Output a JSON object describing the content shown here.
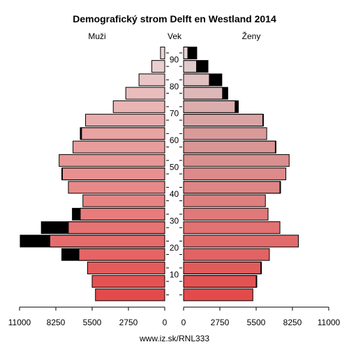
{
  "chart_data": {
    "type": "bar",
    "title": "Demografický strom Delft en Westland 2014",
    "left_header": "Muži",
    "center_header": "Vek",
    "right_header": "Ženy",
    "source": "www.iz.sk/RNL333",
    "xlim": [
      0,
      11000
    ],
    "x_ticks_left": [
      "11000",
      "8250",
      "5500",
      "2750",
      "0"
    ],
    "x_ticks_right": [
      "0",
      "2750",
      "5500",
      "8250",
      "11000"
    ],
    "age_ticks": [
      "10",
      "20",
      "30",
      "40",
      "50",
      "60",
      "70",
      "80",
      "90"
    ],
    "age_groups": [
      "0-4",
      "5-9",
      "10-14",
      "15-19",
      "20-24",
      "25-29",
      "30-34",
      "35-39",
      "40-44",
      "45-49",
      "50-54",
      "55-59",
      "60-64",
      "65-69",
      "70-74",
      "75-79",
      "80-84",
      "85-89",
      "90-94"
    ],
    "colors": {
      "surplus": "#000000",
      "male_gradient": [
        "#e34b4b",
        "#e87c7c",
        "#e8a3a3",
        "#ebd6d6"
      ],
      "female_gradient": [
        "#e34b4b",
        "#e07a7a",
        "#d99a9a",
        "#e3d3d3"
      ]
    },
    "series": [
      {
        "name": "Muži",
        "values": [
          5250,
          5500,
          5850,
          7800,
          10950,
          9350,
          7000,
          6200,
          7300,
          7800,
          8000,
          6950,
          6400,
          6000,
          3900,
          2950,
          1950,
          980,
          320
        ]
      },
      {
        "name": "Ženy",
        "values": [
          5250,
          5550,
          5900,
          6500,
          8700,
          7300,
          6400,
          6200,
          7350,
          7750,
          8000,
          7000,
          6300,
          6050,
          4150,
          3350,
          2900,
          1850,
          1000
        ]
      }
    ]
  }
}
